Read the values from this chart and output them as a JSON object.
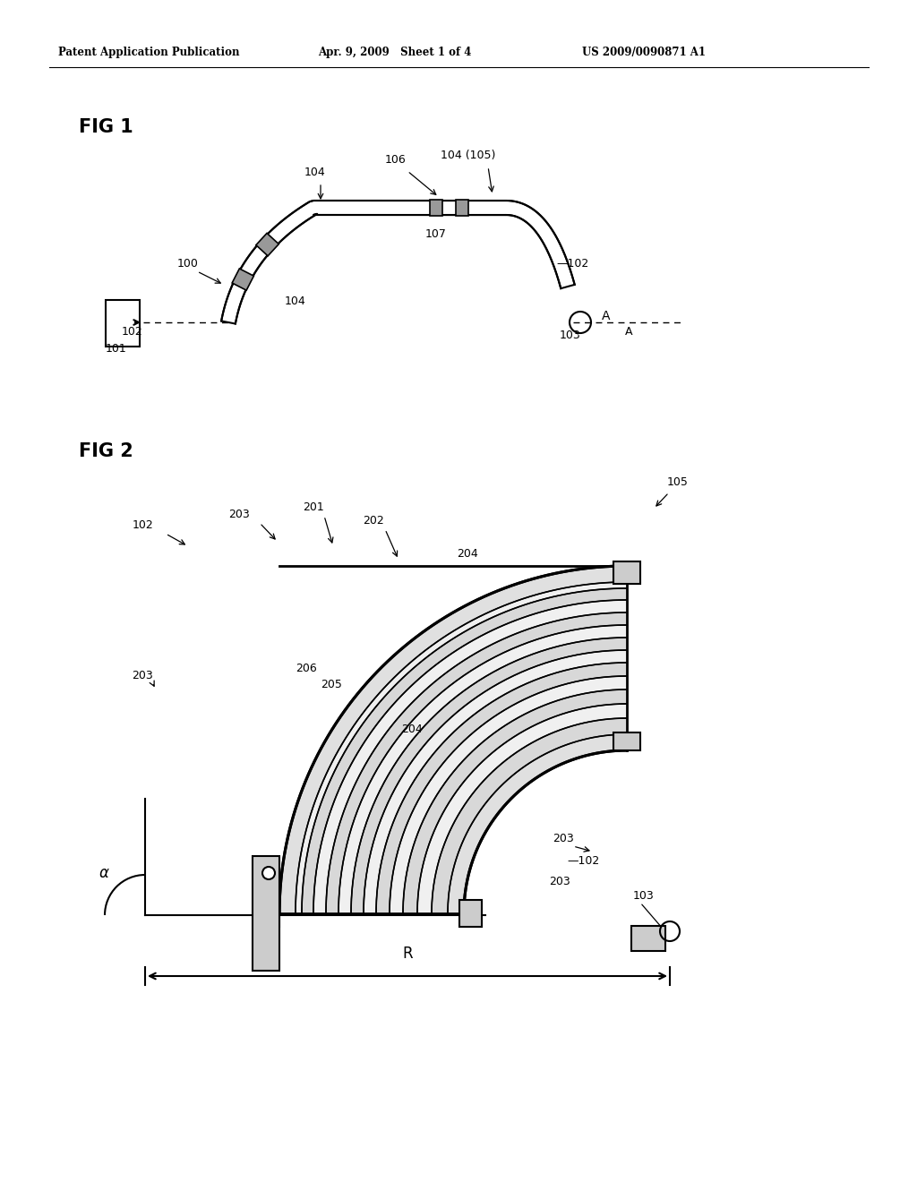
{
  "bg_color": "#ffffff",
  "header_left": "Patent Application Publication",
  "header_mid": "Apr. 9, 2009   Sheet 1 of 4",
  "header_right": "US 2009/0090871 A1",
  "fig1_label": "FIG 1",
  "fig2_label": "FIG 2",
  "lc": "#000000",
  "tc": "#000000"
}
